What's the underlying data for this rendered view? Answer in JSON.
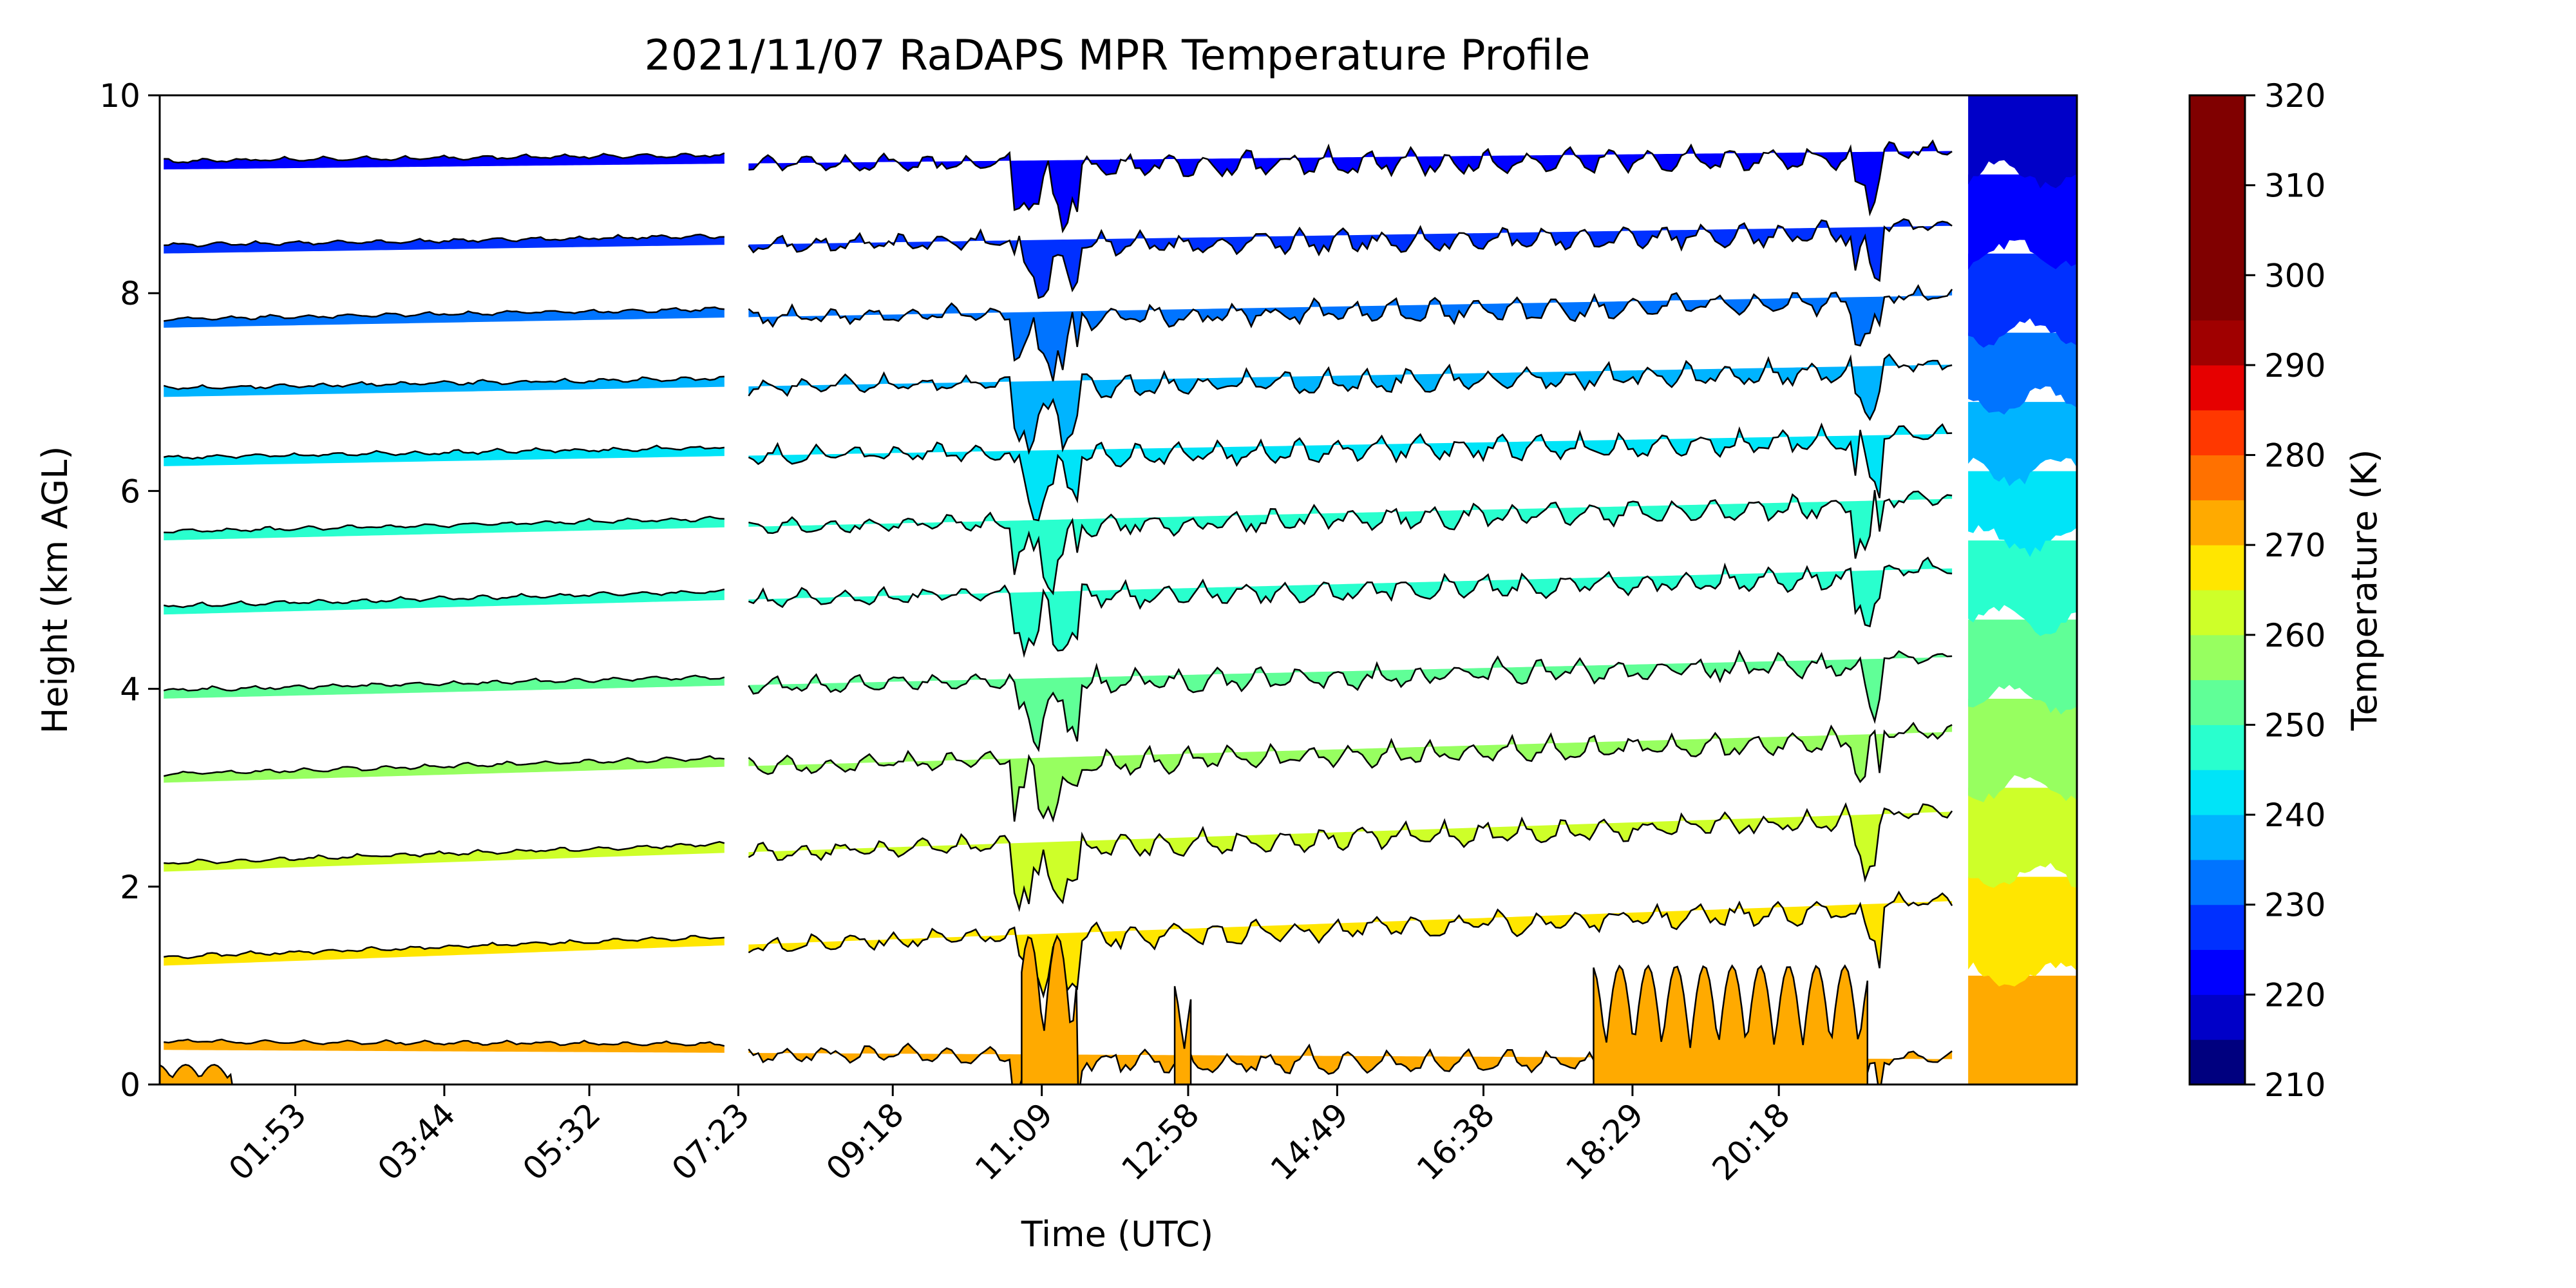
{
  "chart_data": {
    "type": "heatmap",
    "subtype": "filled-contour",
    "title": "2021/11/07 RaDAPS MPR Temperature Profile",
    "xlabel": "Time (UTC)",
    "ylabel": "Height (km AGL)",
    "x_tick_labels": [
      "01:53",
      "03:44",
      "05:32",
      "07:23",
      "09:18",
      "11:09",
      "12:58",
      "14:49",
      "16:38",
      "18:29",
      "20:18"
    ],
    "x_tick_hours": [
      1.883,
      3.733,
      5.533,
      7.383,
      9.3,
      11.15,
      12.967,
      14.817,
      16.633,
      18.483,
      20.3
    ],
    "x_range_hours": [
      0.2,
      24.0
    ],
    "ylim": [
      0,
      10
    ],
    "y_ticks": [
      0,
      2,
      4,
      6,
      8,
      10
    ],
    "contour_levels_K": [
      210,
      215,
      220,
      225,
      230,
      235,
      240,
      245,
      250,
      255,
      260,
      265,
      270,
      275,
      280,
      285,
      290,
      295,
      300,
      305,
      310,
      315,
      320
    ],
    "colorbar": {
      "label": "Temperature (K)",
      "ticks": [
        210,
        220,
        230,
        240,
        250,
        260,
        270,
        280,
        290,
        300,
        310,
        320
      ],
      "colors": [
        "#00007f",
        "#0000c8",
        "#0000ff",
        "#0030ff",
        "#0074ff",
        "#00b4ff",
        "#00e4f8",
        "#29ffce",
        "#60ff97",
        "#97ff60",
        "#ceff29",
        "#ffe600",
        "#ffaa00",
        "#ff7100",
        "#ff3800",
        "#e60000",
        "#a00000",
        "#800000",
        "#800000",
        "#800000",
        "#800000",
        "#800000"
      ]
    },
    "data_gap_hours": [
      [
        7.25,
        7.45
      ],
      [
        22.5,
        22.6
      ]
    ],
    "profile_bands": [
      {
        "temp_K": 285,
        "height_start_km": 0.35,
        "height_end_km": 0.25,
        "color": "#ffaa00"
      },
      {
        "temp_K": 280,
        "height_start_km": 1.2,
        "height_end_km": 1.9,
        "color": "#ffe600"
      },
      {
        "temp_K": 275,
        "height_start_km": 2.15,
        "height_end_km": 2.8,
        "color": "#ceff29"
      },
      {
        "temp_K": 270,
        "height_start_km": 3.05,
        "height_end_km": 3.6,
        "color": "#97ff60"
      },
      {
        "temp_K": 265,
        "height_start_km": 3.9,
        "height_end_km": 4.35,
        "color": "#60ff97"
      },
      {
        "temp_K": 260,
        "height_start_km": 4.75,
        "height_end_km": 5.25,
        "color": "#29ffce"
      },
      {
        "temp_K": 255,
        "height_start_km": 5.5,
        "height_end_km": 5.95,
        "color": "#29ffce"
      },
      {
        "temp_K": 250,
        "height_start_km": 6.25,
        "height_end_km": 6.6,
        "color": "#00e4f8"
      },
      {
        "temp_K": 245,
        "height_start_km": 6.95,
        "height_end_km": 7.3,
        "color": "#00b4ff"
      },
      {
        "temp_K": 240,
        "height_start_km": 7.65,
        "height_end_km": 8.0,
        "color": "#0074ff"
      },
      {
        "temp_K": 235,
        "height_start_km": 8.4,
        "height_end_km": 8.7,
        "color": "#0030ff"
      },
      {
        "temp_K": 230,
        "height_start_km": 9.25,
        "height_end_km": 9.45,
        "color": "#0000ff"
      }
    ]
  }
}
